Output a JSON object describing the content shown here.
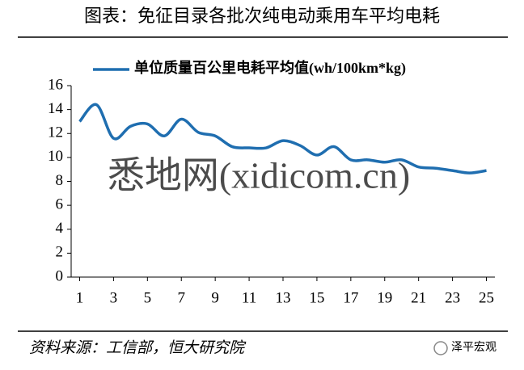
{
  "chart_data": {
    "type": "line",
    "title": "图表：免征目录各批次纯电动乘用车平均电耗",
    "x": [
      1,
      2,
      3,
      4,
      5,
      6,
      7,
      8,
      9,
      10,
      11,
      12,
      13,
      14,
      15,
      16,
      17,
      18,
      19,
      20,
      21,
      22,
      23,
      24,
      25
    ],
    "xlim": [
      0.5,
      25.5
    ],
    "xticks": [
      1,
      3,
      5,
      7,
      9,
      11,
      13,
      15,
      17,
      19,
      21,
      23,
      25
    ],
    "ylim": [
      0,
      16
    ],
    "yticks": [
      0,
      2,
      4,
      6,
      8,
      10,
      12,
      14,
      16
    ],
    "series": [
      {
        "name": "单位质量百公里电耗平均值(wh/100km*kg)",
        "color": "#1f6eb0",
        "values": [
          13.0,
          14.4,
          11.6,
          12.6,
          12.8,
          11.8,
          13.2,
          12.1,
          11.8,
          10.9,
          10.8,
          10.8,
          11.4,
          11.0,
          10.2,
          10.9,
          9.8,
          9.8,
          9.6,
          9.8,
          9.2,
          9.1,
          8.9,
          8.7,
          8.9
        ]
      }
    ],
    "legend": "top",
    "grid": false,
    "watermark": "悉地网(xidicom.cn)",
    "source": "资料来源：工信部，恒大研究院",
    "brand": "泽平宏观"
  }
}
